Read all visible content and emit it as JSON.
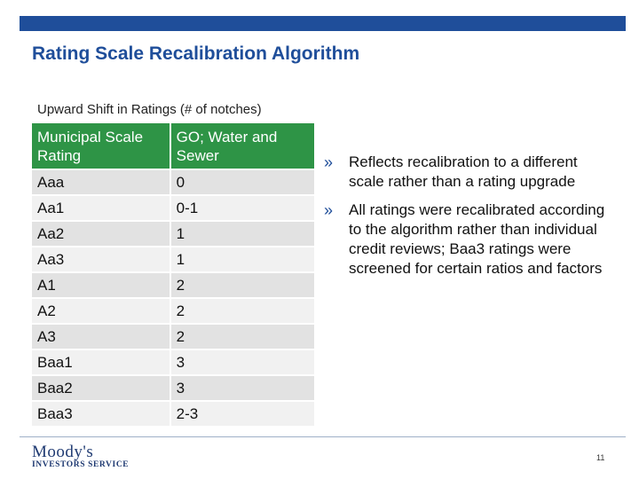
{
  "slide": {
    "title": "Rating Scale Recalibration Algorithm",
    "page_number": "11",
    "accent_color": "#1f4e9a",
    "header_color": "#2e9446"
  },
  "table": {
    "caption": "Upward Shift in Ratings (# of notches)",
    "headers": [
      "Municipal Scale Rating",
      "GO; Water and Sewer"
    ],
    "rows": [
      {
        "rating": "Aaa",
        "shift": "0"
      },
      {
        "rating": "Aa1",
        "shift": "0-1"
      },
      {
        "rating": "Aa2",
        "shift": "1"
      },
      {
        "rating": "Aa3",
        "shift": "1"
      },
      {
        "rating": "A1",
        "shift": "2"
      },
      {
        "rating": "A2",
        "shift": "2"
      },
      {
        "rating": "A3",
        "shift": "2"
      },
      {
        "rating": "Baa1",
        "shift": "3"
      },
      {
        "rating": "Baa2",
        "shift": "3"
      },
      {
        "rating": "Baa3",
        "shift": "2-3"
      }
    ]
  },
  "bullets": {
    "marker": "»",
    "items": [
      "Reflects recalibration to a different scale rather than a rating upgrade",
      "All ratings were recalibrated according to the algorithm rather than individual credit reviews; Baa3 ratings were screened for certain ratios and factors"
    ]
  },
  "logo": {
    "main": "Moody's",
    "sub": "INVESTORS SERVICE"
  }
}
